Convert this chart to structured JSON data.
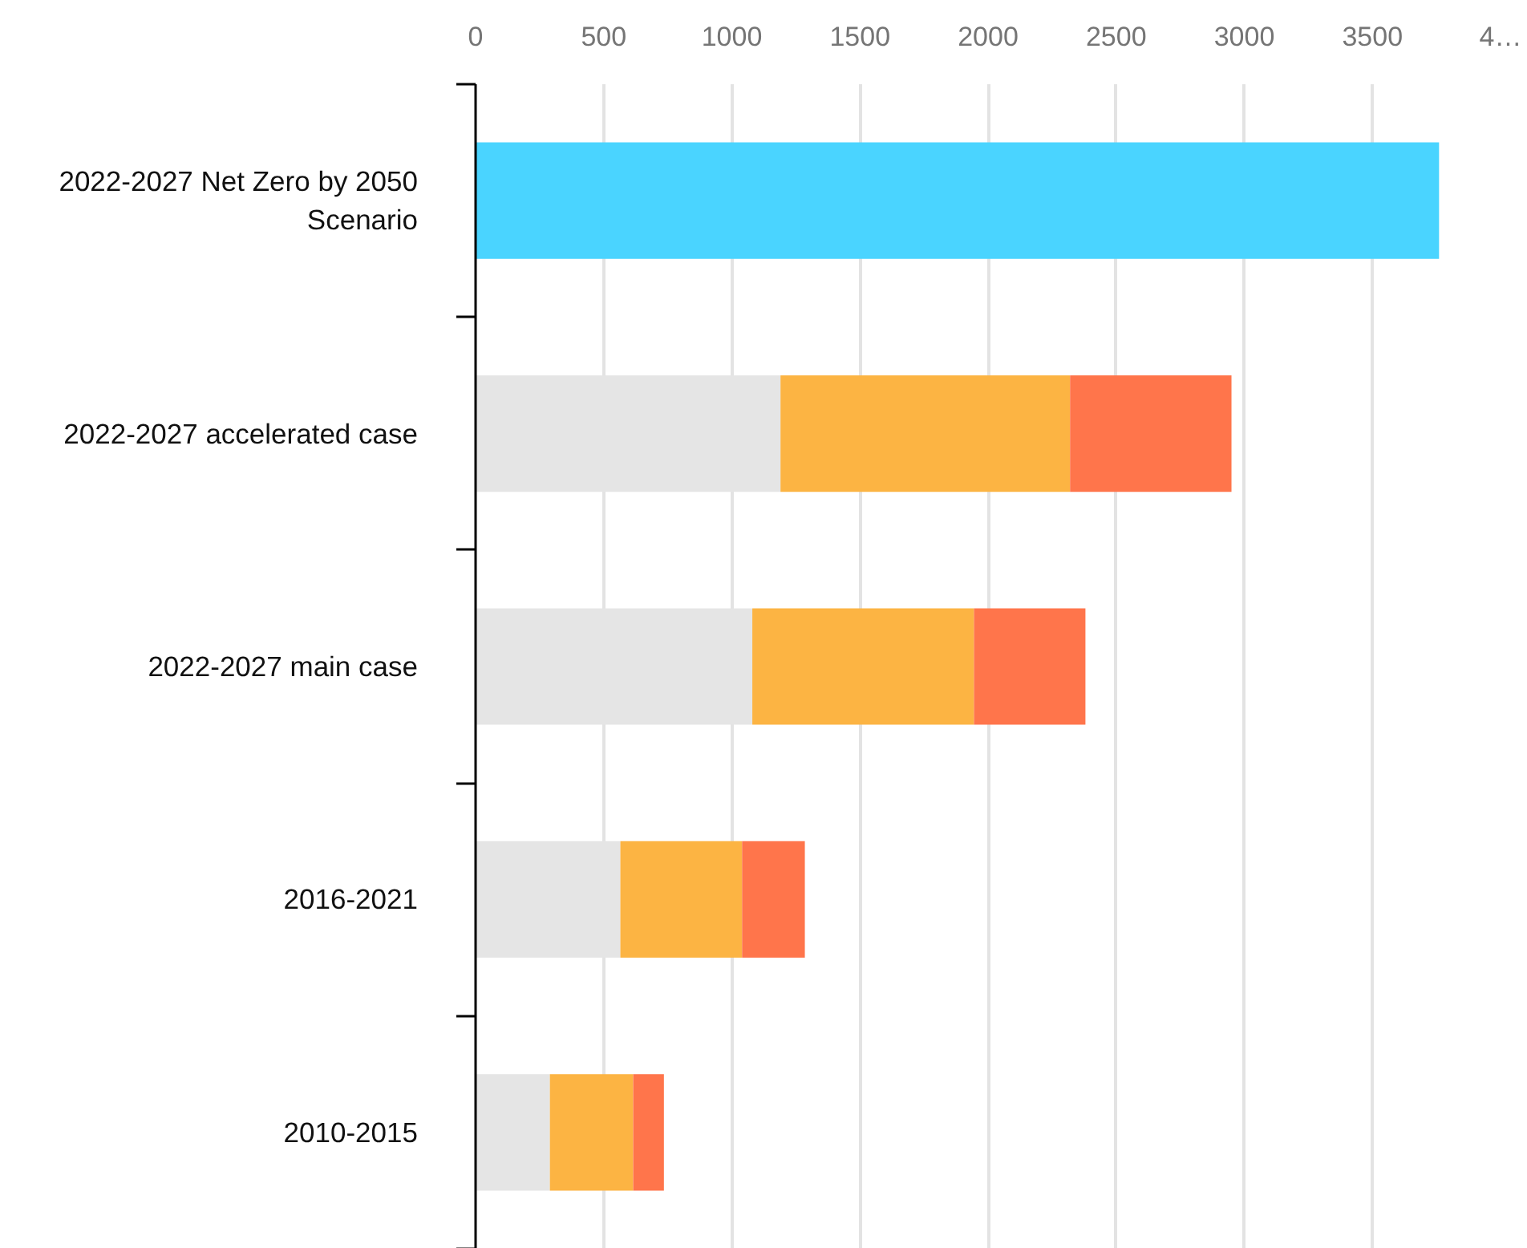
{
  "chart_data": {
    "type": "bar",
    "orientation": "horizontal",
    "stacked": true,
    "categories": [
      "2022-2027 Net Zero by 2050 Scenario",
      "2022-2027 accelerated case",
      "2022-2027 main case",
      "2016-2021",
      "2010-2015"
    ],
    "series": [
      {
        "color": "#e5e5e5",
        "values": [
          null,
          1190,
          1080,
          565,
          290
        ]
      },
      {
        "color": "#fcb443",
        "values": [
          null,
          1130,
          865,
          475,
          325
        ]
      },
      {
        "color": "#ff754b",
        "values": [
          null,
          630,
          435,
          245,
          120
        ]
      },
      {
        "color": "#4ad4ff",
        "values": [
          3760,
          null,
          null,
          null,
          null
        ]
      }
    ],
    "xlim": [
      0,
      4000
    ],
    "xticks": [
      0,
      500,
      1000,
      1500,
      2000,
      2500,
      3000,
      3500,
      {
        "value": 4000,
        "label": "4…"
      }
    ],
    "grid": "x"
  }
}
